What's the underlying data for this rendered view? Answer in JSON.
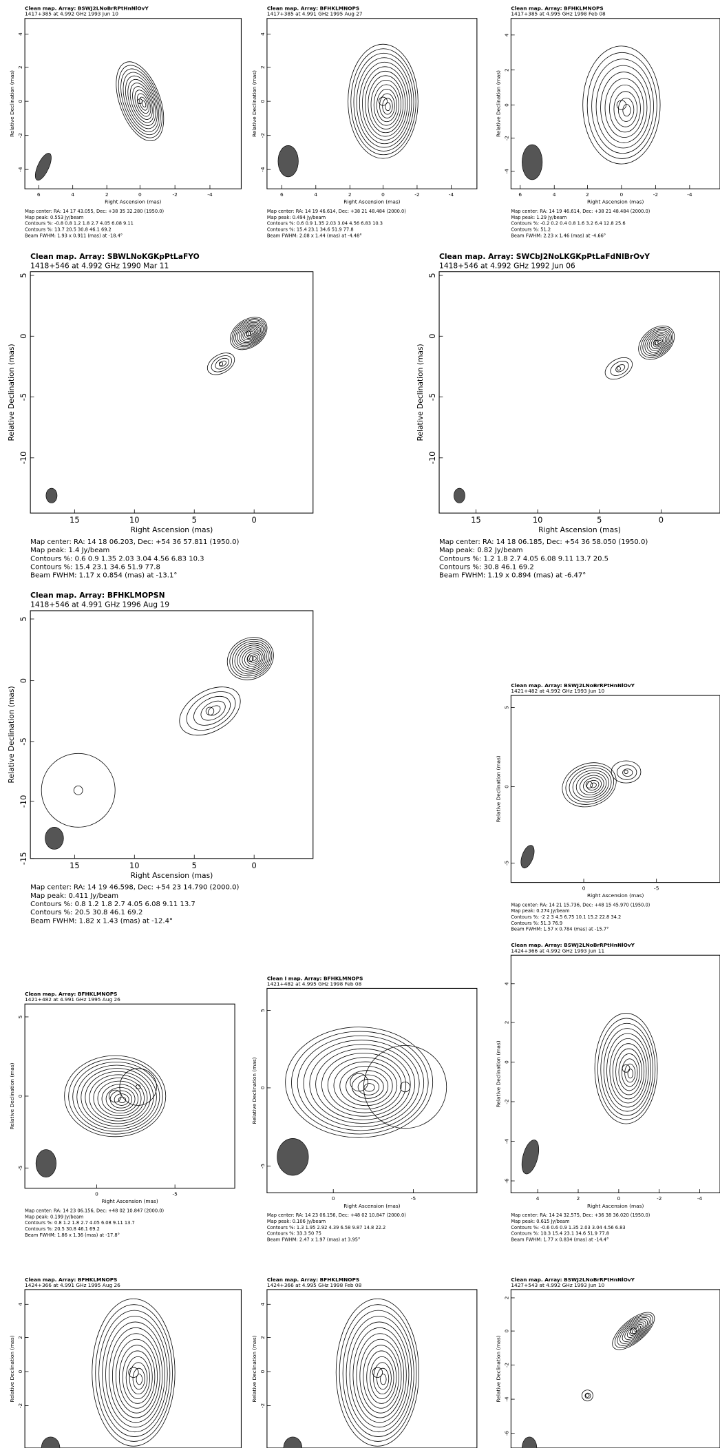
{
  "panels": [
    {
      "title": "Clean map.  Array: BSWJ2LNoBrRPtHnNlOvY",
      "subtitle": "1417+385 at 4.992 GHz 1993 Jun 10",
      "x_label": "Right Ascension  (mas)",
      "y_label": "Relative Declination  (mas)",
      "xticks": [
        "6",
        "4",
        "2",
        "0",
        "-2",
        "-4"
      ],
      "yticks": [
        "4",
        "2",
        "0",
        "-2",
        "-4"
      ],
      "caption": [
        "Map center:  RA: 14 17 43.055,  Dec: +38 35 32.280 (1950.0)",
        "Map peak: 0.553 Jy/beam",
        "Contours %: -0.8 0.8 1.2 1.8 2.7 4.05 6.08 9.11",
        "Contours %: 13.7 20.5 30.8 46.1 69.2",
        "Beam FWHM: 1.93 x 0.911 (mas) at -18.4°"
      ]
    },
    {
      "title": "Clean map.  Array: BFHKLMNOPS",
      "subtitle": "1417+385 at 4.991 GHz 1995 Aug 27",
      "x_label": "Right Ascension  (mas)",
      "y_label": "Relative Declination  (mas)",
      "xticks": [
        "6",
        "4",
        "2",
        "0",
        "-2",
        "-4"
      ],
      "yticks": [
        "4",
        "2",
        "0",
        "-2",
        "-4"
      ],
      "caption": [
        "Map center:  RA: 14 19 46.614,  Dec: +38 21 48.484 (2000.0)",
        "Map peak: 0.494 Jy/beam",
        "Contours %: 0.6 0.9 1.35 2.03 3.04 4.56 6.83 10.3",
        "Contours %: 15.4 23.1 34.6 51.9 77.8",
        "Beam FWHM: 2.08 x 1.44 (mas) at -4.48°"
      ]
    },
    {
      "title": "Clean map.  Array: BFHKLMNOPS",
      "subtitle": "1417+385 at 4.995 GHz 1998 Feb 08",
      "x_label": "Right Ascension  (mas)",
      "y_label": "Relative Declination  (mas)",
      "xticks": [
        "6",
        "4",
        "2",
        "0",
        "-2",
        "-4"
      ],
      "yticks": [
        "4",
        "2",
        "0",
        "-2",
        "-4"
      ],
      "caption": [
        "Map center:  RA: 14 19 46.614,  Dec: +38 21 48.484 (2000.0)",
        "Map peak: 1.29 Jy/beam",
        "Contours %: -0.2 0.2 0.4 0.8 1.6 3.2 6.4 12.8 25.6",
        "Contours %: 51.2",
        "Beam FWHM: 2.23 x 1.46 (mas) at -4.66°"
      ]
    },
    {
      "title": "Clean map.  Array: SBWLNoKGKpPtLaFYO",
      "subtitle": "1418+546 at 4.992 GHz 1990 Mar 11",
      "x_label": "Right Ascension  (mas)",
      "y_label": "Relative Declination  (mas)",
      "xticks": [
        "15",
        "10",
        "5",
        "0"
      ],
      "yticks": [
        "5",
        "0",
        "-5",
        "-10"
      ],
      "caption": [
        "Map center:  RA: 14 18 06.203,  Dec: +54 36 57.811 (1950.0)",
        "Map peak: 1.4 Jy/beam",
        "Contours %: 0.6 0.9 1.35 2.03 3.04 4.56 6.83 10.3",
        "Contours %: 15.4 23.1 34.6 51.9 77.8",
        "Beam FWHM: 1.17 x 0.854 (mas) at -13.1°"
      ]
    },
    {
      "title": "Clean map.  Array: SWCbJ2NoLKGKpPtLaFdNlBrOvY",
      "subtitle": "1418+546 at 4.992 GHz 1992 Jun 06",
      "x_label": "Right Ascension  (mas)",
      "y_label": "Relative Declination  (mas)",
      "xticks": [
        "15",
        "10",
        "5",
        "0"
      ],
      "yticks": [
        "5",
        "0",
        "-5",
        "-10"
      ],
      "caption": [
        "Map center:  RA: 14 18 06.185,  Dec: +54 36 58.050 (1950.0)",
        "Map peak: 0.82 Jy/beam",
        "Contours %: 1.2 1.8 2.7 4.05 6.08 9.11 13.7 20.5",
        "Contours %: 30.8 46.1 69.2",
        "Beam FWHM: 1.19 x 0.894 (mas) at -6.47°"
      ]
    },
    {
      "title": "Clean map.  Array: BFHKLMOPSN",
      "subtitle": "1418+546 at 4.991 GHz 1996 Aug 19",
      "x_label": "Right Ascension  (mas)",
      "y_label": "Relative Declination  (mas)",
      "xticks": [
        "15",
        "10",
        "5",
        "0"
      ],
      "yticks": [
        "5",
        "0",
        "-5",
        "-10",
        "-15"
      ],
      "caption": [
        "Map center:  RA: 14 19 46.598,  Dec: +54 23 14.790 (2000.0)",
        "Map peak: 0.411 Jy/beam",
        "Contours %: 0.8 1.2 1.8 2.7 4.05 6.08 9.11 13.7",
        "Contours %: 20.5 30.8 46.1 69.2",
        "Beam FWHM: 1.82 x 1.43 (mas) at -12.4°"
      ]
    },
    {
      "title": "Clean map.  Array: BSWJ2LNoBrRPtHnNlOvY",
      "subtitle": "1421+482 at 4.992 GHz 1993 Jun 10",
      "x_label": "Right Ascension  (mas)",
      "y_label": "Relative Declination  (mas)",
      "xticks": [
        "0",
        "-5"
      ],
      "yticks": [
        "5",
        "0",
        "-5"
      ],
      "caption": [
        "Map center:  RA: 14 21 15.736,  Dec: +48 15 45.970 (1950.0)",
        "Map peak: 0.274 Jy/beam",
        "Contours %: -2 2 3 4.5 6.75 10.1 15.2 22.8 34.2",
        "Contours %: 51.3 76.9",
        "Beam FWHM: 1.57 x 0.784 (mas) at -15.7°"
      ]
    },
    {
      "title": "Clean map.  Array: BFHKLMNOPS",
      "subtitle": "1421+482 at 4.991 GHz 1995 Aug 26",
      "x_label": "Right Ascension  (mas)",
      "y_label": "Relative Declination  (mas)",
      "xticks": [
        "0",
        "-5"
      ],
      "yticks": [
        "5",
        "0",
        "-5"
      ],
      "caption": [
        "Map center:  RA: 14 23 06.156,  Dec: +48 02 10.847 (2000.0)",
        "Map peak: 0.199 Jy/beam",
        "Contours %: 0.8 1.2 1.8 2.7 4.05 6.08 9.11 13.7",
        "Contours %: 20.5 30.8 46.1 69.2",
        "Beam FWHM: 1.86 x 1.36 (mas) at -17.8°"
      ]
    },
    {
      "title": "Clean I map.  Array: BFHKLMNOPS",
      "subtitle": "1421+482 at 4.995 GHz 1998 Feb 08",
      "x_label": "Right Ascension  (mas)",
      "y_label": "Relative Declination  (mas)",
      "xticks": [
        "0",
        "-5"
      ],
      "yticks": [
        "5",
        "0",
        "-5"
      ],
      "caption": [
        "Map center:  RA: 14 23 06.156,  Dec: +48 02 10.847 (2000.0)",
        "Map peak: 0.106 Jy/beam",
        "Contours %: 1.3 1.95 2.92 4.39 6.58 9.87 14.8 22.2",
        "Contours %: 33.3 50 75",
        "Beam FWHM: 2.47 x 1.97 (mas) at 3.95°"
      ]
    },
    {
      "title": "Clean map.  Array: BSWJ2LNoBrRPtHnNlOvY",
      "subtitle": "1424+366 at 4.992 GHz 1993 Jun 11",
      "x_label": "Right Ascension  (mas)",
      "y_label": "Relative Declination  (mas)",
      "xticks": [
        "4",
        "2",
        "0",
        "-2",
        "-4"
      ],
      "yticks": [
        "4",
        "2",
        "0",
        "-2",
        "-4",
        "-6"
      ],
      "caption": [
        "Map center:  RA: 14 24 32.575,  Dec: +36 38 36.020 (1950.0)",
        "Map peak: 0.615 Jy/beam",
        "Contours %: -0.6 0.6 0.9 1.35 2.03 3.04 4.56 6.83",
        "Contours %: 10.3 15.4 23.1 34.6 51.9 77.8",
        "Beam FWHM: 1.77 x 0.834 (mas) at -14.4°"
      ]
    },
    {
      "title": "Clean map.  Array: BFHKLMNOPS",
      "subtitle": "1424+366 at 4.991 GHz 1995 Aug 26",
      "y_label": "Relative Declination  (mas)",
      "yticks": [
        "4",
        "2",
        "0",
        "-2"
      ]
    },
    {
      "title": "Clean map.  Array: BFHKLMNOPS",
      "subtitle": "1424+366 at 4.995 GHz 1998 Feb 08",
      "y_label": "Relative Declination  (mas)",
      "yticks": [
        "4",
        "2",
        "0",
        "-2"
      ]
    },
    {
      "title": "Clean map.  Array: BSWJ2LNoBrRPtHnNlOvY",
      "subtitle": "1427+543 at 4.992 GHz 1993 Jun 10",
      "y_label": "Relative Declination  (mas)",
      "yticks": [
        "2",
        "0",
        "-2",
        "-4",
        "-6"
      ]
    }
  ]
}
